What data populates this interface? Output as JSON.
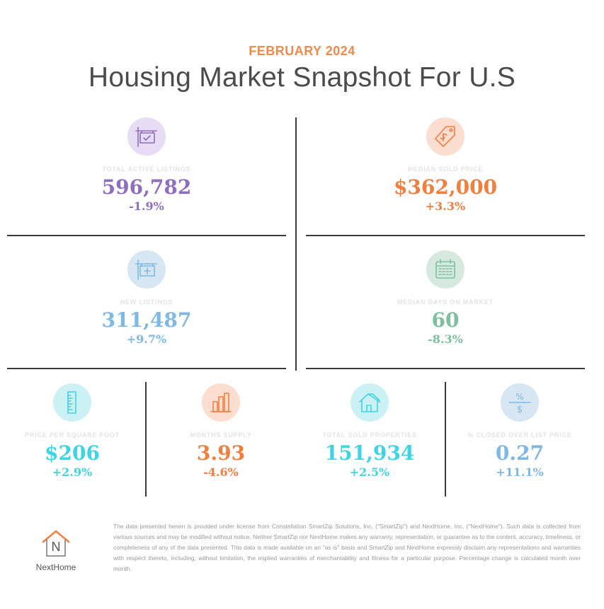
{
  "header": {
    "date": "FEBRUARY 2024",
    "title": "Housing Market Snapshot For U.S"
  },
  "stats": {
    "active_listings": {
      "label": "TOTAL ACTIVE LISTINGS",
      "value": "596,782",
      "change": "-1.9%",
      "color": "#8e6fbf",
      "bg": "#e6dcf3",
      "icon": "listing-sign-check-icon"
    },
    "median_sold": {
      "label": "MEDIAN SOLD PRICE",
      "value": "$362,000",
      "change": "+3.3%",
      "color": "#ef7f3f",
      "bg": "#fbded0",
      "icon": "price-tag-icon"
    },
    "new_listings": {
      "label": "NEW LISTINGS",
      "value": "311,487",
      "change": "+9.7%",
      "color": "#7fb8e3",
      "bg": "#d6e6f3",
      "icon": "listing-sign-plus-icon"
    },
    "median_days": {
      "label": "MEDIAN DAYS ON MARKET",
      "value": "60",
      "change": "-8.3%",
      "color": "#7fbf9f",
      "bg": "#d6e9df",
      "icon": "calendar-icon"
    },
    "price_sqft": {
      "label": "PRICE PER SQUARE FOOT",
      "value": "$206",
      "change": "+2.9%",
      "color": "#3fd4e3",
      "bg": "#ccf1f5",
      "icon": "ruler-icon"
    },
    "months_supply": {
      "label": "MONTHS SUPPLY",
      "value": "3.93",
      "change": "-4.6%",
      "color": "#ef7f3f",
      "bg": "#fbded0",
      "icon": "bar-chart-icon"
    },
    "sold_properties": {
      "label": "TOTAL SOLD PROPERTIES",
      "value": "151,934",
      "change": "+2.5%",
      "color": "#3fd4e3",
      "bg": "#ccf1f5",
      "icon": "house-icon"
    },
    "closed_over_list": {
      "label": "% CLOSED OVER LIST PRICE",
      "value": "0.27",
      "change": "+11.1%",
      "color": "#7fb8e3",
      "bg": "#d6e6f3",
      "icon": "percent-dollar-icon"
    }
  },
  "footer": {
    "brand": "NextHome",
    "logo_letter": "N",
    "disclaimer": "The data presented herein is provided under license from Constellation SmartZip Solutions, Inc. (\"SmartZip\") and NextHome, Inc. (\"NextHome\"). Such data is collected from various sources and may be modified without notice. Neither SmartZip nor NextHome makes any warranty, representation, or guarantee as to the content, accuracy, timeliness, or completeness of any of the data presented. This data is made available on an \"as is\" basis and SmartZip and NextHome expressly disclaim any representations and warranties with respect thereto, including, without limitation, the implied warranties of merchantability and fitness for a particular purpose. Percentage change is calculated month over month.",
    "accent": "#ef7f3f"
  }
}
